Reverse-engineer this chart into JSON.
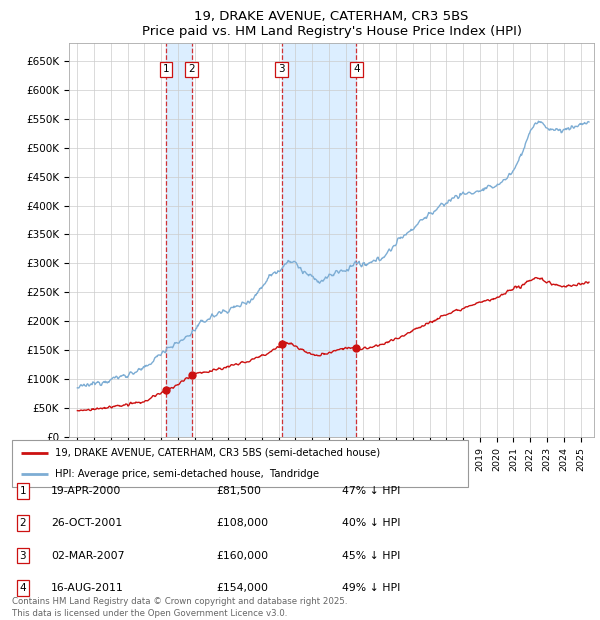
{
  "title": "19, DRAKE AVENUE, CATERHAM, CR3 5BS",
  "subtitle": "Price paid vs. HM Land Registry's House Price Index (HPI)",
  "background_color": "#ffffff",
  "grid_color": "#cccccc",
  "hpi_color": "#7dadd4",
  "price_color": "#cc1111",
  "shade_color": "#dceeff",
  "transactions": [
    {
      "num": 1,
      "date": "19-APR-2000",
      "year": 2000.29,
      "price": 81500
    },
    {
      "num": 2,
      "date": "26-OCT-2001",
      "year": 2001.81,
      "price": 108000
    },
    {
      "num": 3,
      "date": "02-MAR-2007",
      "year": 2007.17,
      "price": 160000
    },
    {
      "num": 4,
      "date": "16-AUG-2011",
      "year": 2011.63,
      "price": 154000
    }
  ],
  "legend_line1": "19, DRAKE AVENUE, CATERHAM, CR3 5BS (semi-detached house)",
  "legend_line2": "HPI: Average price, semi-detached house,  Tandridge",
  "footer": "Contains HM Land Registry data © Crown copyright and database right 2025.\nThis data is licensed under the Open Government Licence v3.0.",
  "table_rows": [
    [
      "1",
      "19-APR-2000",
      "£81,500",
      "47% ↓ HPI"
    ],
    [
      "2",
      "26-OCT-2001",
      "£108,000",
      "40% ↓ HPI"
    ],
    [
      "3",
      "02-MAR-2007",
      "£160,000",
      "45% ↓ HPI"
    ],
    [
      "4",
      "16-AUG-2011",
      "£154,000",
      "49% ↓ HPI"
    ]
  ],
  "yticks": [
    0,
    50000,
    100000,
    150000,
    200000,
    250000,
    300000,
    350000,
    400000,
    450000,
    500000,
    550000,
    600000,
    650000
  ],
  "ylabels": [
    "£0",
    "£50K",
    "£100K",
    "£150K",
    "£200K",
    "£250K",
    "£300K",
    "£350K",
    "£400K",
    "£450K",
    "£500K",
    "£550K",
    "£600K",
    "£650K"
  ],
  "ylim": [
    0,
    680000
  ],
  "xlim": [
    1994.5,
    2025.8
  ]
}
